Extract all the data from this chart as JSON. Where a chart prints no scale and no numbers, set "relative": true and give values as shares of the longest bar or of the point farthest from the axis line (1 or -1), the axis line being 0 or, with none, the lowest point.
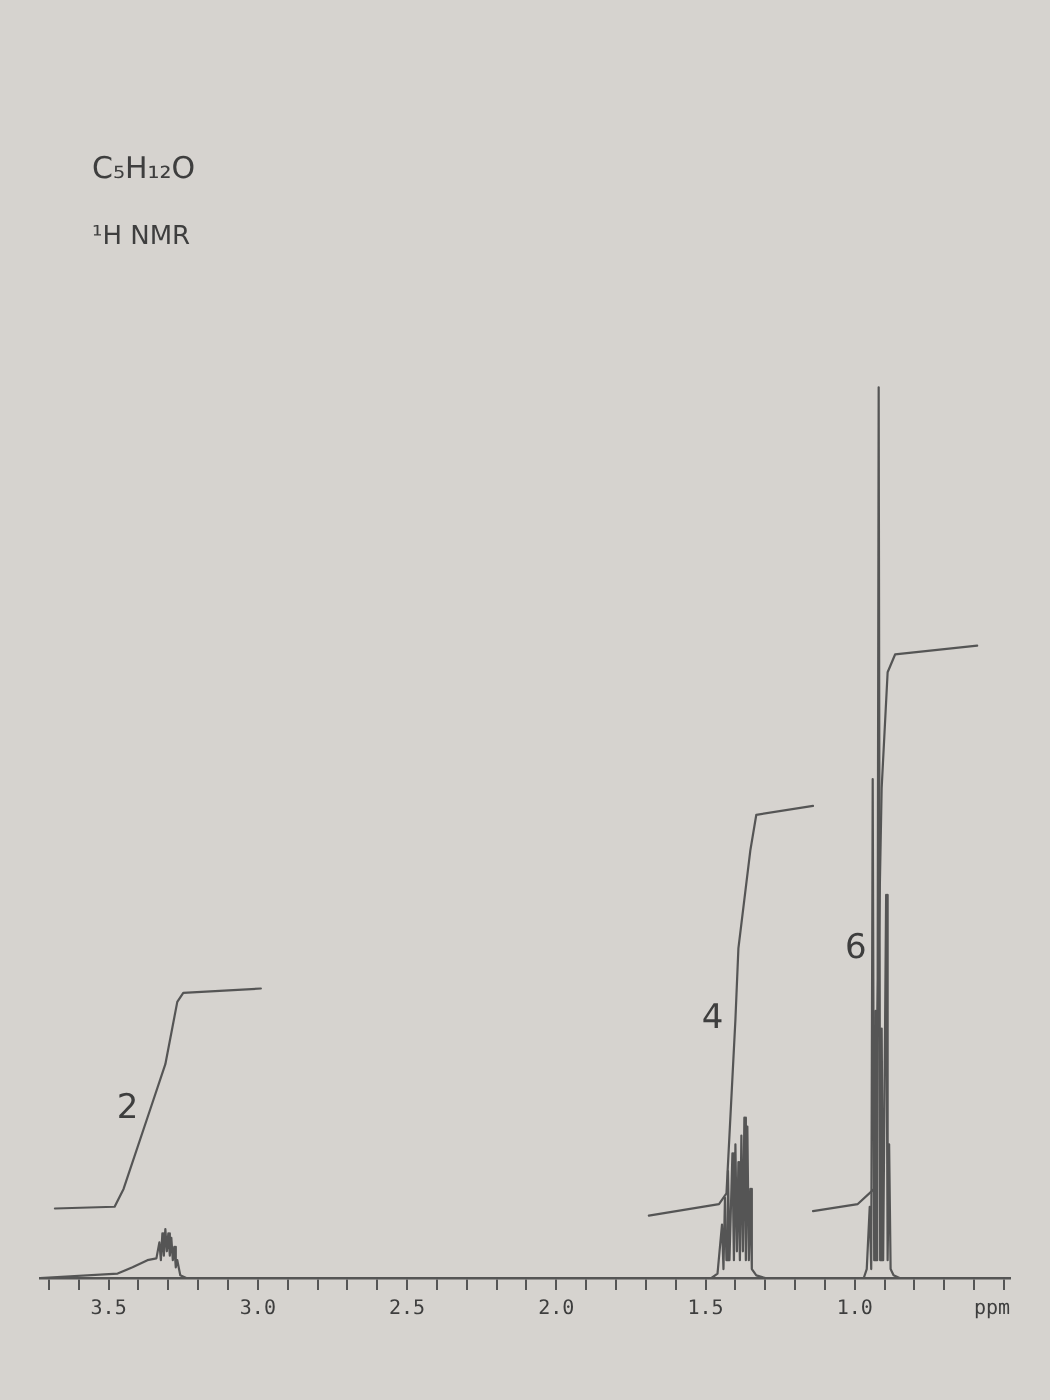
{
  "chart_data": {
    "type": "line",
    "title": "C₅H₁₂O",
    "subtitle": "¹H NMR",
    "xlabel": "ppm",
    "relative": true,
    "xlim": [
      3.73,
      0.48
    ],
    "xticks": [
      {
        "value": 3.7,
        "label": null
      },
      {
        "value": 3.6,
        "label": null
      },
      3.5,
      {
        "value": 3.4,
        "label": null
      },
      {
        "value": 3.3,
        "label": null
      },
      {
        "value": 3.2,
        "label": null
      },
      {
        "value": 3.1,
        "label": null
      },
      {
        "value": 3.0,
        "label": "3.0"
      },
      {
        "value": 2.9,
        "label": null
      },
      {
        "value": 2.8,
        "label": null
      },
      {
        "value": 2.7,
        "label": null
      },
      {
        "value": 2.6,
        "label": null
      },
      2.5,
      {
        "value": 2.4,
        "label": null
      },
      {
        "value": 2.3,
        "label": null
      },
      {
        "value": 2.2,
        "label": null
      },
      {
        "value": 2.1,
        "label": null
      },
      {
        "value": 2.0,
        "label": "2.0"
      },
      {
        "value": 1.9,
        "label": null
      },
      {
        "value": 1.8,
        "label": null
      },
      {
        "value": 1.7,
        "label": null
      },
      {
        "value": 1.6,
        "label": null
      },
      1.5,
      {
        "value": 1.4,
        "label": null
      },
      {
        "value": 1.3,
        "label": null
      },
      {
        "value": 1.2,
        "label": null
      },
      {
        "value": 1.1,
        "label": null
      },
      {
        "value": 1.0,
        "label": "1.0"
      },
      {
        "value": 0.9,
        "label": null
      },
      {
        "value": 0.8,
        "label": null
      },
      {
        "value": 0.7,
        "label": null
      },
      {
        "value": 0.6,
        "label": null
      },
      {
        "value": 0.5,
        "label": null
      }
    ],
    "series": [
      {
        "color": "#555555",
        "x": [
          3.73,
          3.47,
          3.42,
          3.37,
          3.34,
          3.33,
          3.325,
          3.32,
          3.315,
          3.31,
          3.305,
          3.3,
          3.295,
          3.29,
          3.285,
          3.28,
          3.275,
          3.27,
          3.26,
          3.24,
          1.48,
          1.46,
          1.445,
          1.44,
          1.435,
          1.43,
          1.425,
          1.42,
          1.41,
          1.405,
          1.4,
          1.395,
          1.39,
          1.385,
          1.38,
          1.375,
          1.37,
          1.365,
          1.36,
          1.355,
          1.35,
          1.345,
          1.33,
          1.3,
          0.97,
          0.96,
          0.95,
          0.945,
          0.94,
          0.935,
          0.93,
          0.925,
          0.92,
          0.915,
          0.91,
          0.905,
          0.895,
          0.89,
          0.885,
          0.88,
          0.87,
          0.85,
          0.48
        ],
        "values": [
          0,
          0.005,
          0.012,
          0.02,
          0.022,
          0.04,
          0.02,
          0.05,
          0.025,
          0.055,
          0.03,
          0.05,
          0.025,
          0.045,
          0.02,
          0.035,
          0.012,
          0.02,
          0.003,
          0,
          0,
          0.005,
          0.06,
          0.01,
          0.09,
          0.02,
          0.12,
          0.02,
          0.14,
          0.02,
          0.15,
          0.03,
          0.13,
          0.02,
          0.16,
          0.03,
          0.18,
          0.02,
          0.17,
          0.02,
          0.1,
          0.01,
          0.003,
          0,
          0,
          0.01,
          0.08,
          0.01,
          0.56,
          0.02,
          0.3,
          0.02,
          1,
          0.02,
          0.28,
          0.02,
          0.43,
          0.02,
          0.15,
          0.01,
          0.003,
          0,
          0
        ]
      },
      {
        "color": "#555555",
        "x": [
          3.68,
          3.48,
          3.45,
          3.36,
          3.31,
          3.27,
          3.25,
          2.99
        ],
        "values": [
          0.078,
          0.08,
          0.1,
          0.19,
          0.24,
          0.31,
          0.32,
          0.325
        ]
      },
      {
        "color": "#555555",
        "x": [
          1.69,
          1.455,
          1.43,
          1.4,
          1.39,
          1.35,
          1.33,
          1.14
        ],
        "values": [
          0.07,
          0.083,
          0.095,
          0.29,
          0.37,
          0.48,
          0.52,
          0.53
        ]
      },
      {
        "color": "#555555",
        "x": [
          1.14,
          0.99,
          0.935,
          0.92,
          0.91,
          0.89,
          0.865,
          0.59
        ],
        "values": [
          0.075,
          0.083,
          0.1,
          0.37,
          0.55,
          0.68,
          0.7,
          0.71
        ]
      }
    ],
    "annotations": [
      {
        "text": "2",
        "x": 3.36,
        "y": 0.19
      },
      {
        "text": "4",
        "x": 1.4,
        "y": 0.29
      },
      {
        "text": "6",
        "x": 0.92,
        "y": 0.37
      }
    ]
  }
}
